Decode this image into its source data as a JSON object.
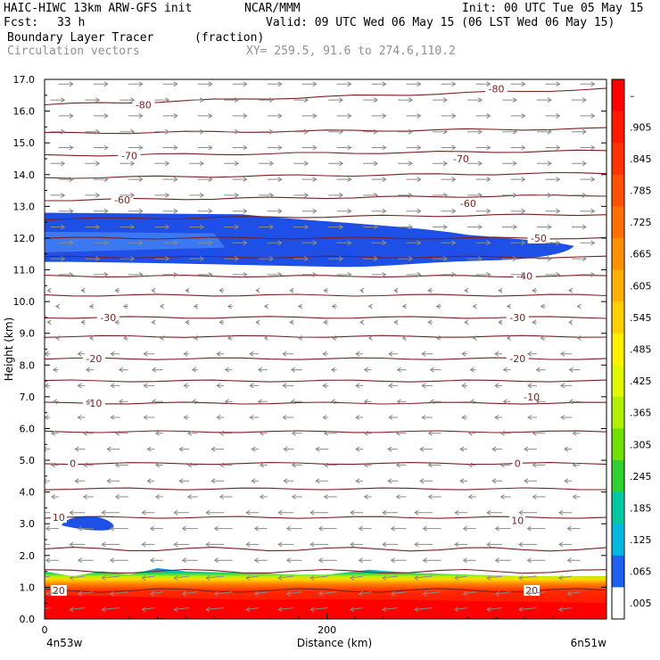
{
  "header": {
    "title": "HAIC-HIWC 13km ARW-GFS init",
    "org": "NCAR/MMM",
    "init": "Init: 00 UTC Tue 05 May 15",
    "fcst_label": "Fcst:",
    "fcst_value": "33 h",
    "valid": "Valid: 09 UTC Wed 06 May 15 (06 LST Wed 06 May 15)",
    "field": "Boundary Layer Tracer",
    "field_unit": "(fraction)",
    "vectors": "Circulation vectors",
    "xy": "XY= 259.5, 91.6 to 274.6,110.2"
  },
  "colors": {
    "contour": "#7a1f1f",
    "vector": "#8a8a8a",
    "tracer_blue": "#1e50e8",
    "tracer_blue_light": "#3c78f0"
  },
  "chart_data": {
    "type": "heatmap",
    "ylabel": "Height (km)",
    "xlabel": "Distance (km)",
    "x_ticks": [
      {
        "value": 0,
        "label": "0"
      },
      {
        "value": 200,
        "label": "200"
      }
    ],
    "x_end_labels": {
      "left": "4n53w",
      "right": "6n51w"
    },
    "xlim": [
      0,
      398
    ],
    "ylim": [
      0,
      17
    ],
    "y_ticks": [
      "0.0",
      "1.0",
      "2.0",
      "3.0",
      "4.0",
      "5.0",
      "6.0",
      "7.0",
      "8.0",
      "9.0",
      "10.0",
      "11.0",
      "12.0",
      "13.0",
      "14.0",
      "15.0",
      "16.0",
      "17.0"
    ],
    "colorbar": {
      "labels": [
        "–",
        ".905",
        ".845",
        ".785",
        ".725",
        ".665",
        ".605",
        ".545",
        ".485",
        ".425",
        ".365",
        ".305",
        ".245",
        ".185",
        ".125",
        ".065",
        ".005"
      ],
      "colors": [
        "#ff0000",
        "#ff1a00",
        "#ff3300",
        "#ff5000",
        "#ff7000",
        "#ff9000",
        "#ffb000",
        "#ffd000",
        "#fff000",
        "#e0f800",
        "#b0f000",
        "#70e000",
        "#30d030",
        "#00c8a0",
        "#00b8e0",
        "#1e60f0",
        "#ffffff"
      ]
    },
    "temperature_contours": [
      {
        "label": "-80",
        "label_positions": [
          [
            70,
            16.2
          ],
          [
            320,
            16.7
          ]
        ]
      },
      {
        "label": "-70",
        "label_positions": [
          [
            60,
            14.6
          ],
          [
            295,
            14.5
          ]
        ]
      },
      {
        "label": "-60",
        "label_positions": [
          [
            55,
            13.2
          ],
          [
            300,
            13.1
          ]
        ]
      },
      {
        "label": "-50",
        "label_positions": [
          [
            350,
            12.0
          ]
        ]
      },
      {
        "label": "-40",
        "label_positions": [
          [
            340,
            10.8
          ]
        ]
      },
      {
        "label": "-30",
        "label_positions": [
          [
            45,
            9.5
          ],
          [
            335,
            9.5
          ]
        ]
      },
      {
        "label": "-20",
        "label_positions": [
          [
            35,
            8.2
          ],
          [
            335,
            8.2
          ]
        ]
      },
      {
        "label": "-10",
        "label_positions": [
          [
            35,
            6.8
          ],
          [
            345,
            7.0
          ]
        ]
      },
      {
        "label": "0",
        "label_positions": [
          [
            20,
            4.9
          ],
          [
            335,
            4.9
          ]
        ]
      },
      {
        "label": "10",
        "label_positions": [
          [
            10,
            3.2
          ],
          [
            335,
            3.1
          ]
        ]
      },
      {
        "label": "20",
        "label_positions": [
          [
            10,
            0.9
          ],
          [
            345,
            0.9
          ]
        ]
      }
    ],
    "contour_lines_km": [
      16.2,
      15.3,
      14.6,
      13.9,
      13.2,
      12.6,
      12.0,
      11.4,
      10.8,
      10.2,
      9.5,
      8.9,
      8.2,
      7.5,
      6.8,
      5.9,
      4.9,
      4.1,
      3.2,
      2.2,
      1.5,
      0.9
    ],
    "tracer_regions": [
      {
        "name": "upper layer",
        "value": 0.005,
        "x_range": [
          0,
          375
        ],
        "y_range": [
          11.1,
          12.8
        ]
      },
      {
        "name": "small patch",
        "value": 0.005,
        "x_range": [
          12,
          52
        ],
        "y_range": [
          2.8,
          3.3
        ]
      },
      {
        "name": "boundary layer",
        "value": 0.905,
        "x_range": [
          0,
          398
        ],
        "y_range": [
          0,
          1.5
        ]
      }
    ]
  }
}
